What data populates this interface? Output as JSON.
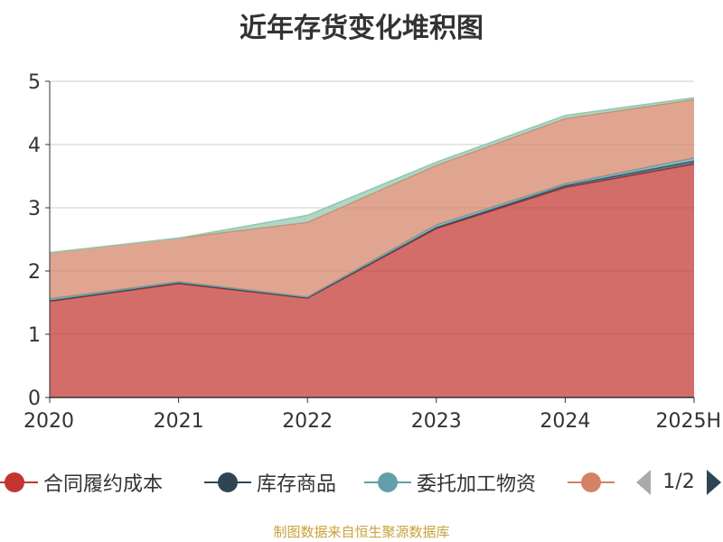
{
  "chart_data": {
    "type": "area",
    "title": "近年存货变化堆积图",
    "ylabel": "",
    "categories": [
      "2020",
      "2021",
      "2022",
      "2023",
      "2024",
      "2025H"
    ],
    "ylim": [
      0,
      5
    ],
    "yticks": [
      0,
      1,
      2,
      3,
      4,
      5
    ],
    "stacked": true,
    "grid": true,
    "legend_position": "bottom",
    "series": [
      {
        "name": "合同履约成本",
        "color": "#c23531",
        "values": [
          1.52,
          1.8,
          1.57,
          2.67,
          3.32,
          3.69
        ]
      },
      {
        "name": "库存商品",
        "color": "#2f4554",
        "values": [
          0.01,
          0.01,
          0.005,
          0.02,
          0.03,
          0.05
        ]
      },
      {
        "name": "委托加工物资",
        "color": "#61a0a8",
        "values": [
          0.03,
          0.02,
          0.015,
          0.04,
          0.03,
          0.05
        ]
      },
      {
        "name": "",
        "color": "#d48265",
        "values": [
          0.73,
          0.69,
          1.18,
          0.94,
          1.03,
          0.92
        ]
      },
      {
        "name": "",
        "color": "#91c7ae",
        "values": [
          0.0,
          0.0,
          0.11,
          0.05,
          0.05,
          0.03
        ]
      }
    ]
  },
  "legend": {
    "page_text": "1/2"
  },
  "source_note": "制图数据来自恒生聚源数据库"
}
